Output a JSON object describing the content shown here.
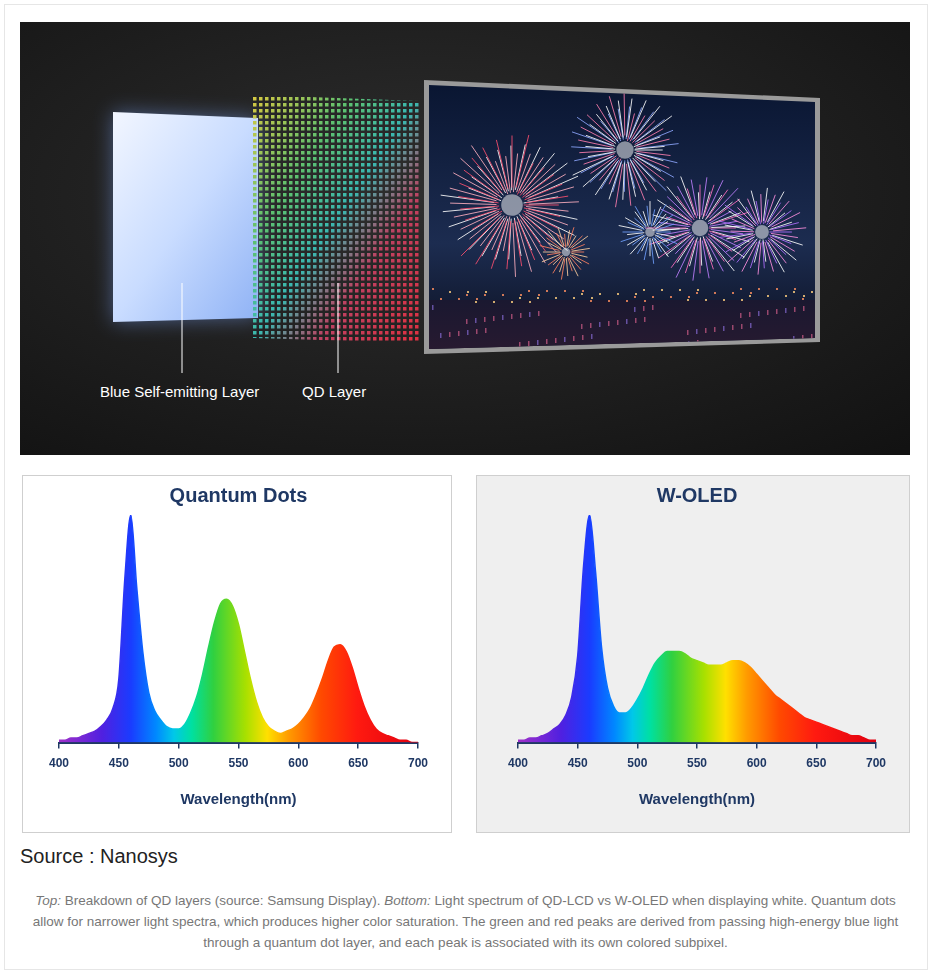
{
  "diagram": {
    "labels": [
      "Blue Self-emitting Layer",
      "QD Layer"
    ]
  },
  "chart_data": [
    {
      "type": "area",
      "title": "Quantum Dots",
      "x_label": "Wavelength(nm)",
      "color": "spectrum",
      "x": [
        400,
        405,
        410,
        415,
        420,
        425,
        430,
        435,
        440,
        445,
        450,
        455,
        460,
        465,
        470,
        475,
        480,
        485,
        490,
        495,
        500,
        505,
        510,
        515,
        520,
        525,
        530,
        535,
        540,
        545,
        550,
        555,
        560,
        565,
        570,
        575,
        580,
        585,
        590,
        595,
        600,
        605,
        610,
        615,
        620,
        625,
        630,
        635,
        640,
        645,
        650,
        655,
        660,
        665,
        670,
        675,
        680,
        685,
        690,
        695,
        700
      ],
      "values": [
        1,
        1,
        2,
        2,
        3,
        4,
        5,
        7,
        10,
        15,
        28,
        72,
        100,
        68,
        40,
        22,
        14,
        10,
        7,
        6,
        6,
        8,
        13,
        20,
        30,
        42,
        53,
        61,
        63,
        60,
        52,
        40,
        28,
        18,
        11,
        7,
        5,
        4,
        5,
        6,
        8,
        11,
        15,
        21,
        28,
        36,
        42,
        43,
        40,
        33,
        24,
        16,
        10,
        6,
        4,
        3,
        2,
        1,
        1,
        0,
        0
      ],
      "xlim": [
        400,
        700
      ],
      "xticks": [
        400,
        450,
        500,
        550,
        600,
        650,
        700
      ],
      "ylim": [
        0,
        100
      ],
      "yticks": [],
      "tick_labels": "x",
      "grid": false
    },
    {
      "type": "area",
      "title": "W-OLED",
      "x_label": "Wavelength(nm)",
      "color": "spectrum",
      "x": [
        400,
        405,
        410,
        415,
        420,
        425,
        430,
        435,
        440,
        445,
        450,
        455,
        460,
        465,
        470,
        475,
        480,
        485,
        490,
        495,
        500,
        505,
        510,
        515,
        520,
        525,
        530,
        535,
        540,
        545,
        550,
        555,
        560,
        565,
        570,
        575,
        580,
        585,
        590,
        595,
        600,
        605,
        610,
        615,
        620,
        625,
        630,
        635,
        640,
        645,
        650,
        655,
        660,
        665,
        670,
        675,
        680,
        685,
        690,
        695,
        700
      ],
      "values": [
        1,
        1,
        2,
        2,
        3,
        4,
        6,
        8,
        12,
        20,
        38,
        78,
        100,
        75,
        42,
        24,
        16,
        13,
        13,
        15,
        19,
        24,
        30,
        35,
        38,
        40,
        40,
        40,
        39,
        37,
        36,
        35,
        34,
        34,
        34,
        35,
        36,
        36,
        35,
        33,
        30,
        27,
        24,
        21,
        19,
        17,
        15,
        13,
        11,
        10,
        9,
        8,
        7,
        6,
        5,
        4,
        3,
        3,
        2,
        1,
        1
      ],
      "xlim": [
        400,
        700
      ],
      "xticks": [
        400,
        450,
        500,
        550,
        600,
        650,
        700
      ],
      "ylim": [
        0,
        100
      ],
      "yticks": [],
      "tick_labels": "x",
      "grid": false
    }
  ],
  "source": "Source : Nanosys",
  "caption": [
    {
      "text": "Top:",
      "italic": true
    },
    {
      "text": " Breakdown of QD layers (source: Samsung Display). "
    },
    {
      "text": "Bottom:",
      "italic": true
    },
    {
      "text": " Light spectrum of QD-LCD vs W-OLED when displaying white. Quantum dots allow for narrower light spectra, which produces higher color saturation. The green and red peaks are derived from passing high-energy blue light through a quantum dot layer, and each peak is associated with its own colored subpixel."
    }
  ]
}
